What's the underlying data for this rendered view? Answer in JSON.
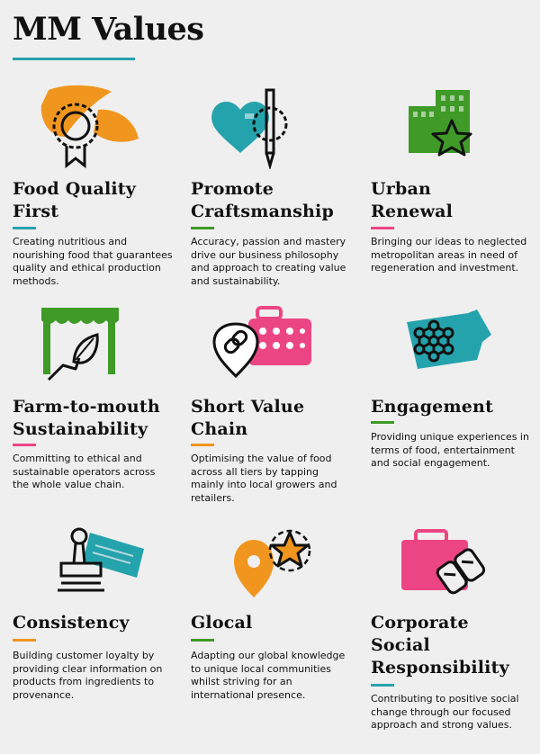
{
  "page": {
    "title": "MM Values"
  },
  "colors": {
    "teal": "#25a3ad",
    "orange": "#f0961e",
    "green": "#3f9a28",
    "pink": "#ec4584"
  },
  "values": [
    {
      "icon": "food-quality-icon",
      "title": "Food Quality\nFirst",
      "accent": "#25a3ad",
      "text": "Creating nutritious and nourishing food that guarantees quality and ethical production methods."
    },
    {
      "icon": "craftsmanship-icon",
      "title": "Promote\nCraftsmanship",
      "accent": "#3f9a28",
      "text": "Accuracy, passion and mastery drive our business philosophy and approach to creating value and sustainability."
    },
    {
      "icon": "urban-renewal-icon",
      "title": "Urban\nRenewal",
      "accent": "#ec4584",
      "text": "Bringing our ideas to neglected metropolitan areas in need of regeneration and investment."
    },
    {
      "icon": "farm-to-mouth-icon",
      "title": "Farm-to-mouth\nSustainability",
      "accent": "#ec4584",
      "text": "Committing to ethical and sustainable operators across the whole value chain."
    },
    {
      "icon": "short-value-chain-icon",
      "title": "Short Value\nChain",
      "accent": "#f0961e",
      "text": "Optimising the value of food across all tiers by tapping mainly into local growers and retailers."
    },
    {
      "icon": "engagement-icon",
      "title": "Engagement",
      "accent": "#3f9a28",
      "text": "Providing unique experiences in terms of food, entertainment and social engagement."
    },
    {
      "icon": "consistency-icon",
      "title": "Consistency",
      "accent": "#f0961e",
      "text": "Building customer loyalty by providing clear information on products from ingredients to provenance."
    },
    {
      "icon": "glocal-icon",
      "title": "Glocal",
      "accent": "#3f9a28",
      "text": "Adapting our global knowledge to unique local communities whilst striving for an international presence."
    },
    {
      "icon": "corporate-social-responsibility-icon",
      "title": "Corporate\nSocial\nResponsibility",
      "accent": "#25a3ad",
      "text": "Contributing to positive social change through our focused approach and strong values."
    }
  ]
}
